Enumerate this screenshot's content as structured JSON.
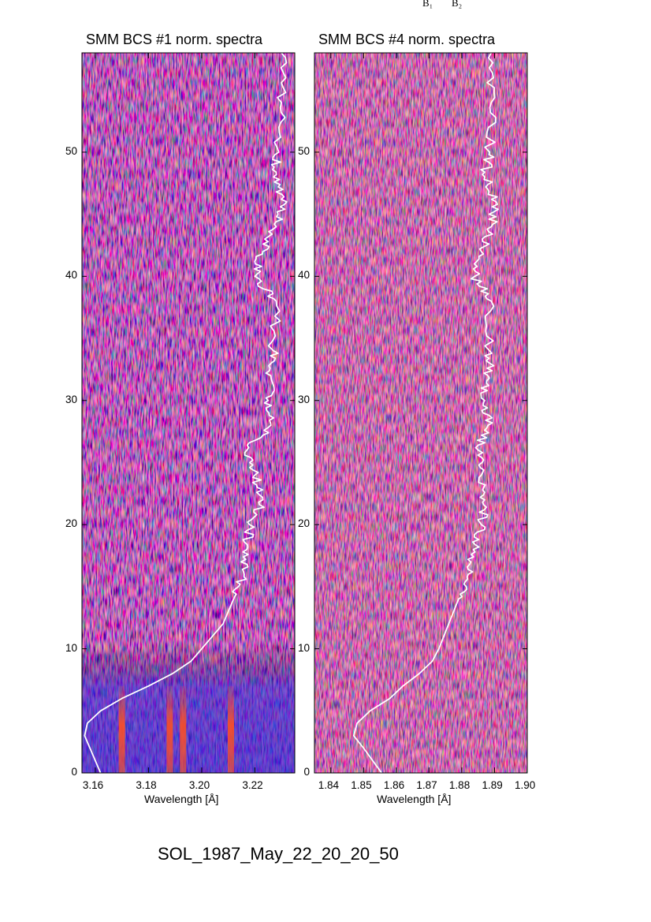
{
  "corner_labels": {
    "b1": "B₁",
    "b2": "B₂"
  },
  "event_label": "SOL_1987_May_22_20_20_50",
  "colors": {
    "background": "#ffffff",
    "spectrogram_dark": "#000000",
    "spectrogram_mid": "#2a1aa8",
    "spectrogram_hot": "#ff3a1a",
    "profile_line": "#ffffff"
  },
  "chart_data": [
    {
      "type": "heatmap",
      "title": "SMM BCS #1 norm. spectra",
      "xlabel": "Wavelength [Å]",
      "ylabel": "",
      "xlim": [
        3.155,
        3.235
      ],
      "ylim": [
        0,
        58
      ],
      "xticks": [
        "3.16",
        "3.18",
        "3.20",
        "3.22"
      ],
      "yticks": [
        "0",
        "10",
        "20",
        "30",
        "40",
        "50"
      ],
      "colormap": "black-blue-red-yellow",
      "bright_line_features_wavelength": [
        3.17,
        3.188,
        3.193,
        3.211
      ],
      "bright_time_range": [
        0,
        7
      ],
      "series": [
        {
          "x": [
            3.162,
            3.158,
            3.156,
            3.157,
            3.162,
            3.17,
            3.18,
            3.189,
            3.196,
            3.2,
            3.208,
            3.212,
            3.216,
            3.217,
            3.218,
            3.223,
            3.22,
            3.217,
            3.226,
            3.225,
            3.226,
            3.227,
            3.228,
            3.22,
            3.223,
            3.228,
            3.232,
            3.227,
            3.229,
            3.23,
            3.23
          ],
          "y": [
            0,
            2,
            3,
            4,
            5,
            6,
            7,
            8,
            9,
            10,
            12,
            14,
            16,
            18,
            20,
            22,
            24,
            26,
            28,
            30,
            32,
            34,
            38,
            40,
            42,
            44,
            46,
            48,
            50,
            54,
            58
          ]
        }
      ]
    },
    {
      "type": "heatmap",
      "title": "SMM BCS #4 norm. spectra",
      "xlabel": "Wavelength [Å]",
      "ylabel": "",
      "xlim": [
        1.835,
        1.9
      ],
      "ylim": [
        0,
        58
      ],
      "xticks": [
        "1.84",
        "1.85",
        "1.86",
        "1.87",
        "1.88",
        "1.89",
        "1.90"
      ],
      "yticks": [
        "0",
        "10",
        "20",
        "30",
        "40",
        "50"
      ],
      "colormap": "black-blue-red-yellow",
      "series": [
        {
          "x": [
            1.8555,
            1.85,
            1.847,
            1.848,
            1.852,
            1.858,
            1.862,
            1.867,
            1.871,
            1.873,
            1.876,
            1.879,
            1.882,
            1.8835,
            1.886,
            1.887,
            1.886,
            1.885,
            1.888,
            1.887,
            1.888,
            1.8885,
            1.889,
            1.884,
            1.886,
            1.889,
            1.8905,
            1.887,
            1.8885,
            1.889,
            1.889
          ],
          "y": [
            0,
            2,
            3,
            4,
            5,
            6,
            7,
            8,
            9,
            10,
            12,
            14,
            16,
            18,
            20,
            22,
            24,
            26,
            28,
            30,
            32,
            34,
            38,
            40,
            42,
            44,
            46,
            48,
            50,
            54,
            58
          ]
        }
      ]
    }
  ]
}
